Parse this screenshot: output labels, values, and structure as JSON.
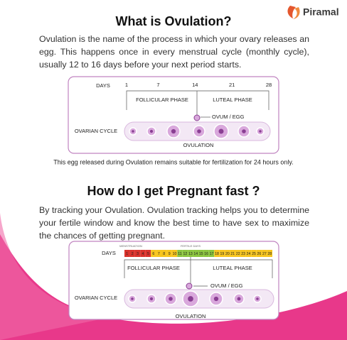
{
  "header": {
    "logo": "Piramal"
  },
  "section1": {
    "title": "What is Ovulation?",
    "paragraph": "Ovulation is the name of the process in which your ovary releases an egg. This happens once in every menstrual cycle (monthly cycle), usually 12 to 16 days before your next period starts.",
    "diagram": {
      "days_label": "DAYS",
      "days": [
        1,
        7,
        14,
        21,
        28
      ],
      "follicular": "FOLLICULAR PHASE",
      "luteal": "LUTEAL PHASE",
      "ovum": "OVUM / EGG",
      "cycle_label": "OVARIAN CYCLE",
      "ovulation": "OVULATION"
    },
    "caption": "This egg released during Ovulation remains suitable for fertilization for 24 hours only."
  },
  "section2": {
    "title": "How do I get Pregnant fast ?",
    "paragraph": "By tracking your Ovulation. Ovulation tracking helps you to determine your fertile window and know the best time to have sex to maximize the chances of getting pregnant.",
    "diagram": {
      "menstruation": "MENSTRUATION",
      "fertile": "FERTILE DAYS",
      "days_label": "DAYS",
      "days": [
        1,
        2,
        3,
        4,
        5,
        6,
        7,
        8,
        9,
        10,
        11,
        12,
        13,
        14,
        15,
        16,
        17,
        18,
        19,
        20,
        21,
        22,
        23,
        24,
        25,
        26,
        27,
        28
      ],
      "follicular": "FOLLICULAR PHASE",
      "luteal": "LUTEAL PHASE",
      "ovum": "OVUM / EGG",
      "cycle_label": "OVARIAN CYCLE",
      "ovulation": "OVULATION"
    }
  }
}
